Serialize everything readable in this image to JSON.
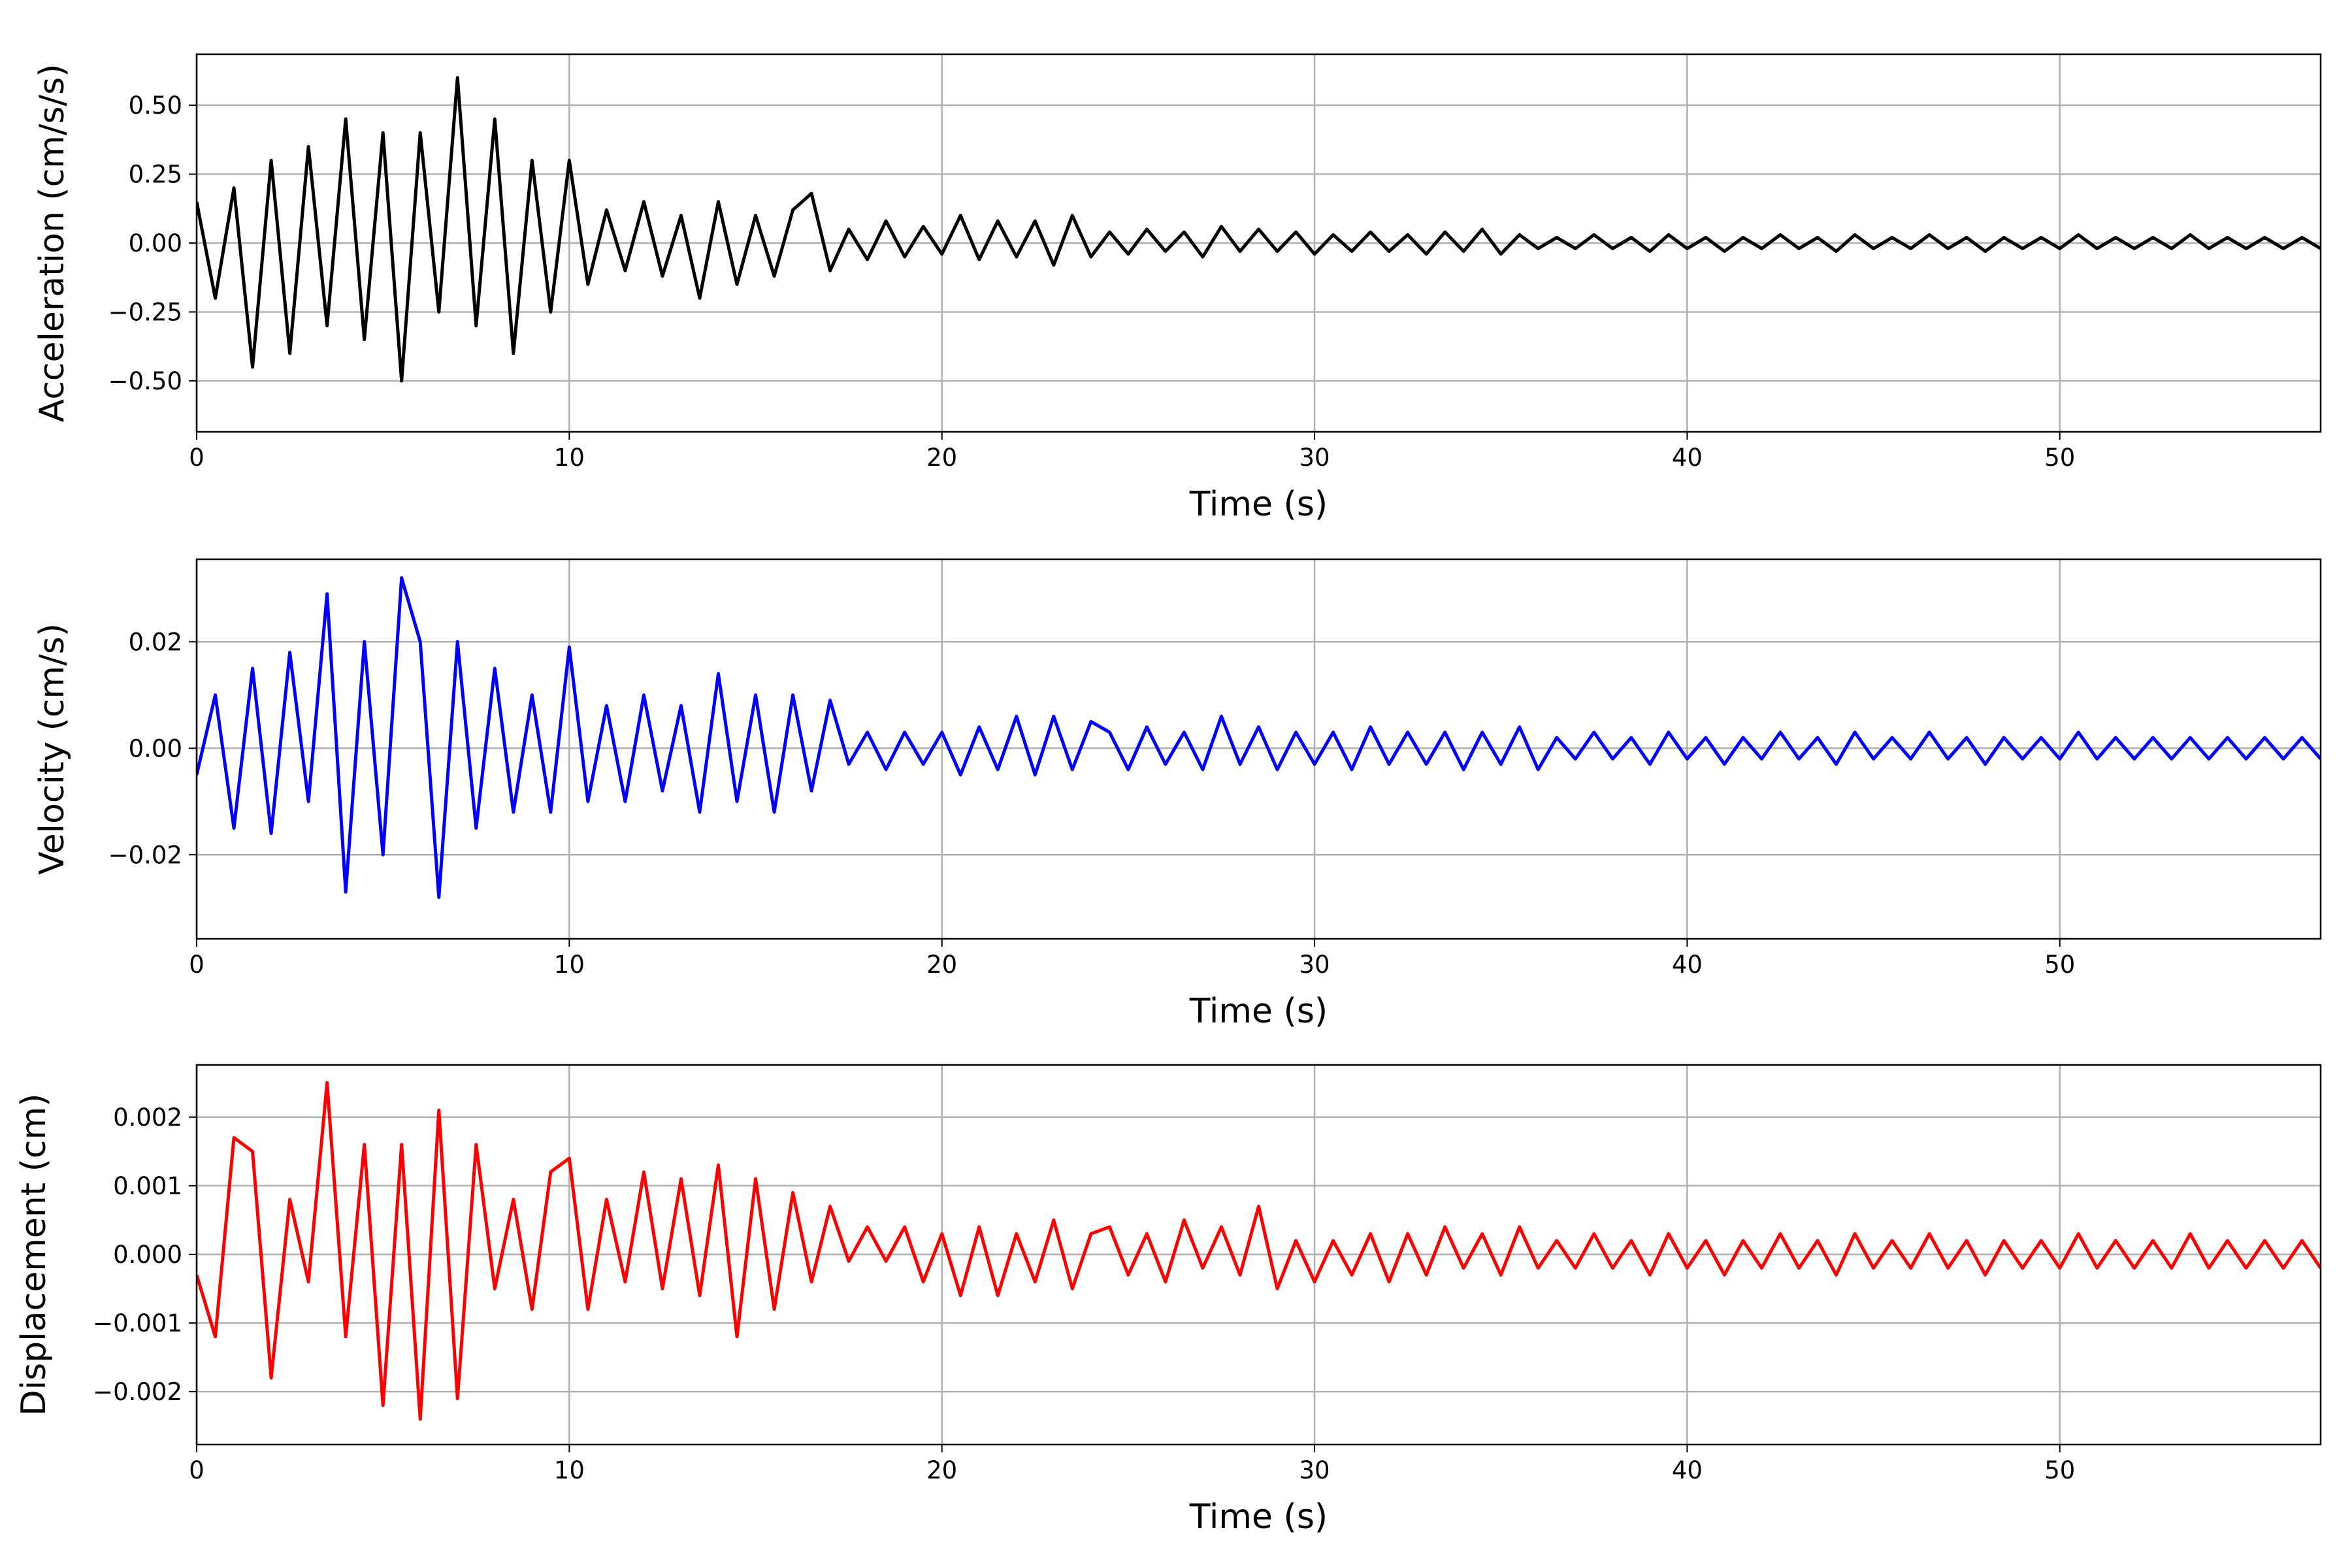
{
  "chart_data": [
    {
      "type": "line",
      "color": "#000000",
      "xlabel": "Time (s)",
      "ylabel": "Acceleration (cm/s/s)",
      "grid": true,
      "xlim": [
        0,
        57
      ],
      "xticks": [
        0,
        10,
        20,
        30,
        40,
        50
      ],
      "ylim": [
        -0.685,
        0.685
      ],
      "yticks": [
        {
          "value": -0.5,
          "label": "−0.50"
        },
        {
          "value": -0.25,
          "label": "−0.25"
        },
        {
          "value": 0,
          "label": "0.00"
        },
        {
          "value": 0.25,
          "label": "0.25"
        },
        {
          "value": 0.5,
          "label": "0.50"
        }
      ],
      "x": [
        0,
        0.5,
        1,
        1.5,
        2,
        2.5,
        3,
        3.5,
        4,
        4.5,
        5,
        5.5,
        6,
        6.5,
        7,
        7.5,
        8,
        8.5,
        9,
        9.5,
        10,
        10.5,
        11,
        11.5,
        12,
        12.5,
        13,
        13.5,
        14,
        14.5,
        15,
        15.5,
        16,
        16.5,
        17,
        17.5,
        18,
        18.5,
        19,
        19.5,
        20,
        20.5,
        21,
        21.5,
        22,
        22.5,
        23,
        23.5,
        24,
        24.5,
        25,
        25.5,
        26,
        26.5,
        27,
        27.5,
        28,
        28.5,
        29,
        29.5,
        30,
        30.5,
        31,
        31.5,
        32,
        32.5,
        33,
        33.5,
        34,
        34.5,
        35,
        35.5,
        36,
        36.5,
        37,
        37.5,
        38,
        38.5,
        39,
        39.5,
        40,
        40.5,
        41,
        41.5,
        42,
        42.5,
        43,
        43.5,
        44,
        44.5,
        45,
        45.5,
        46,
        46.5,
        47,
        47.5,
        48,
        48.5,
        49,
        49.5,
        50,
        50.5,
        51,
        51.5,
        52,
        52.5,
        53,
        53.5,
        54,
        54.5,
        55,
        55.5,
        56,
        56.5,
        57
      ],
      "values": [
        0.15,
        -0.2,
        0.2,
        -0.45,
        0.3,
        -0.4,
        0.35,
        -0.3,
        0.45,
        -0.35,
        0.4,
        -0.5,
        0.4,
        -0.25,
        0.6,
        -0.3,
        0.45,
        -0.4,
        0.3,
        -0.25,
        0.3,
        -0.15,
        0.12,
        -0.1,
        0.15,
        -0.12,
        0.1,
        -0.2,
        0.15,
        -0.15,
        0.1,
        -0.12,
        0.12,
        0.18,
        -0.1,
        0.05,
        -0.06,
        0.08,
        -0.05,
        0.06,
        -0.04,
        0.1,
        -0.06,
        0.08,
        -0.05,
        0.08,
        -0.08,
        0.1,
        -0.05,
        0.04,
        -0.04,
        0.05,
        -0.03,
        0.04,
        -0.05,
        0.06,
        -0.03,
        0.05,
        -0.03,
        0.04,
        -0.04,
        0.03,
        -0.03,
        0.04,
        -0.03,
        0.03,
        -0.04,
        0.04,
        -0.03,
        0.05,
        -0.04,
        0.03,
        -0.02,
        0.02,
        -0.02,
        0.03,
        -0.02,
        0.02,
        -0.03,
        0.03,
        -0.02,
        0.02,
        -0.03,
        0.02,
        -0.02,
        0.03,
        -0.02,
        0.02,
        -0.03,
        0.03,
        -0.02,
        0.02,
        -0.02,
        0.03,
        -0.02,
        0.02,
        -0.03,
        0.02,
        -0.02,
        0.02,
        -0.02,
        0.03,
        -0.02,
        0.02,
        -0.02,
        0.02,
        -0.02,
        0.03,
        -0.02,
        0.02,
        -0.02,
        0.02,
        -0.02,
        0.02,
        -0.02
      ]
    },
    {
      "type": "line",
      "color": "#0000ff",
      "xlabel": "Time (s)",
      "ylabel": "Velocity (cm/s)",
      "grid": true,
      "xlim": [
        0,
        57
      ],
      "xticks": [
        0,
        10,
        20,
        30,
        40,
        50
      ],
      "ylim": [
        -0.0358,
        0.0355
      ],
      "yticks": [
        {
          "value": -0.02,
          "label": "−0.02"
        },
        {
          "value": 0,
          "label": "0.00"
        },
        0.02
      ],
      "x": [
        0,
        0.5,
        1,
        1.5,
        2,
        2.5,
        3,
        3.5,
        4,
        4.5,
        5,
        5.5,
        6,
        6.5,
        7,
        7.5,
        8,
        8.5,
        9,
        9.5,
        10,
        10.5,
        11,
        11.5,
        12,
        12.5,
        13,
        13.5,
        14,
        14.5,
        15,
        15.5,
        16,
        16.5,
        17,
        17.5,
        18,
        18.5,
        19,
        19.5,
        20,
        20.5,
        21,
        21.5,
        22,
        22.5,
        23,
        23.5,
        24,
        24.5,
        25,
        25.5,
        26,
        26.5,
        27,
        27.5,
        28,
        28.5,
        29,
        29.5,
        30,
        30.5,
        31,
        31.5,
        32,
        32.5,
        33,
        33.5,
        34,
        34.5,
        35,
        35.5,
        36,
        36.5,
        37,
        37.5,
        38,
        38.5,
        39,
        39.5,
        40,
        40.5,
        41,
        41.5,
        42,
        42.5,
        43,
        43.5,
        44,
        44.5,
        45,
        45.5,
        46,
        46.5,
        47,
        47.5,
        48,
        48.5,
        49,
        49.5,
        50,
        50.5,
        51,
        51.5,
        52,
        52.5,
        53,
        53.5,
        54,
        54.5,
        55,
        55.5,
        56,
        56.5,
        57
      ],
      "values": [
        -0.005,
        0.01,
        -0.015,
        0.015,
        -0.016,
        0.018,
        -0.01,
        0.029,
        -0.027,
        0.02,
        -0.02,
        0.032,
        0.02,
        -0.028,
        0.02,
        -0.015,
        0.015,
        -0.012,
        0.01,
        -0.012,
        0.019,
        -0.01,
        0.008,
        -0.01,
        0.01,
        -0.008,
        0.008,
        -0.012,
        0.014,
        -0.01,
        0.01,
        -0.012,
        0.01,
        -0.008,
        0.009,
        -0.003,
        0.003,
        -0.004,
        0.003,
        -0.003,
        0.003,
        -0.005,
        0.004,
        -0.004,
        0.006,
        -0.005,
        0.006,
        -0.004,
        0.005,
        0.003,
        -0.004,
        0.004,
        -0.003,
        0.003,
        -0.004,
        0.006,
        -0.003,
        0.004,
        -0.004,
        0.003,
        -0.003,
        0.003,
        -0.004,
        0.004,
        -0.003,
        0.003,
        -0.003,
        0.003,
        -0.004,
        0.003,
        -0.003,
        0.004,
        -0.004,
        0.002,
        -0.002,
        0.003,
        -0.002,
        0.002,
        -0.003,
        0.003,
        -0.002,
        0.002,
        -0.003,
        0.002,
        -0.002,
        0.003,
        -0.002,
        0.002,
        -0.003,
        0.003,
        -0.002,
        0.002,
        -0.002,
        0.003,
        -0.002,
        0.002,
        -0.003,
        0.002,
        -0.002,
        0.002,
        -0.002,
        0.003,
        -0.002,
        0.002,
        -0.002,
        0.002,
        -0.002,
        0.002,
        -0.002,
        0.002,
        -0.002,
        0.002,
        -0.002,
        0.002,
        -0.002
      ]
    },
    {
      "type": "line",
      "color": "#ff0000",
      "xlabel": "Time (s)",
      "ylabel": "Displacement (cm)",
      "grid": true,
      "xlim": [
        0,
        57
      ],
      "xticks": [
        0,
        10,
        20,
        30,
        40,
        50
      ],
      "ylim": [
        -0.00277,
        0.00276
      ],
      "yticks": [
        {
          "value": -0.002,
          "label": "−0.002"
        },
        {
          "value": -0.001,
          "label": "−0.001"
        },
        {
          "value": 0,
          "label": "0.000"
        },
        0.001,
        0.002
      ],
      "x": [
        0,
        0.5,
        1,
        1.5,
        2,
        2.5,
        3,
        3.5,
        4,
        4.5,
        5,
        5.5,
        6,
        6.5,
        7,
        7.5,
        8,
        8.5,
        9,
        9.5,
        10,
        10.5,
        11,
        11.5,
        12,
        12.5,
        13,
        13.5,
        14,
        14.5,
        15,
        15.5,
        16,
        16.5,
        17,
        17.5,
        18,
        18.5,
        19,
        19.5,
        20,
        20.5,
        21,
        21.5,
        22,
        22.5,
        23,
        23.5,
        24,
        24.5,
        25,
        25.5,
        26,
        26.5,
        27,
        27.5,
        28,
        28.5,
        29,
        29.5,
        30,
        30.5,
        31,
        31.5,
        32,
        32.5,
        33,
        33.5,
        34,
        34.5,
        35,
        35.5,
        36,
        36.5,
        37,
        37.5,
        38,
        38.5,
        39,
        39.5,
        40,
        40.5,
        41,
        41.5,
        42,
        42.5,
        43,
        43.5,
        44,
        44.5,
        45,
        45.5,
        46,
        46.5,
        47,
        47.5,
        48,
        48.5,
        49,
        49.5,
        50,
        50.5,
        51,
        51.5,
        52,
        52.5,
        53,
        53.5,
        54,
        54.5,
        55,
        55.5,
        56,
        56.5,
        57
      ],
      "values": [
        -0.0003,
        -0.0012,
        0.0017,
        0.0015,
        -0.0018,
        0.0008,
        -0.0004,
        0.0025,
        -0.0012,
        0.0016,
        -0.0022,
        0.0016,
        -0.0024,
        0.0021,
        -0.0021,
        0.0016,
        -0.0005,
        0.0008,
        -0.0008,
        0.0012,
        0.0014,
        -0.0008,
        0.0008,
        -0.0004,
        0.0012,
        -0.0005,
        0.0011,
        -0.0006,
        0.0013,
        -0.0012,
        0.0011,
        -0.0008,
        0.0009,
        -0.0004,
        0.0007,
        -0.0001,
        0.0004,
        -0.0001,
        0.0004,
        -0.0004,
        0.0003,
        -0.0006,
        0.0004,
        -0.0006,
        0.0003,
        -0.0004,
        0.0005,
        -0.0005,
        0.0003,
        0.0004,
        -0.0003,
        0.0003,
        -0.0004,
        0.0005,
        -0.0002,
        0.0004,
        -0.0003,
        0.0007,
        -0.0005,
        0.0002,
        -0.0004,
        0.0002,
        -0.0003,
        0.0003,
        -0.0004,
        0.0003,
        -0.0003,
        0.0004,
        -0.0002,
        0.0003,
        -0.0003,
        0.0004,
        -0.0002,
        0.0002,
        -0.0002,
        0.0003,
        -0.0002,
        0.0002,
        -0.0003,
        0.0003,
        -0.0002,
        0.0002,
        -0.0003,
        0.0002,
        -0.0002,
        0.0003,
        -0.0002,
        0.0002,
        -0.0003,
        0.0003,
        -0.0002,
        0.0002,
        -0.0002,
        0.0003,
        -0.0002,
        0.0002,
        -0.0003,
        0.0002,
        -0.0002,
        0.0002,
        -0.0002,
        0.0003,
        -0.0002,
        0.0002,
        -0.0002,
        0.0002,
        -0.0002,
        0.0003,
        -0.0002,
        0.0002,
        -0.0002,
        0.0002,
        -0.0002,
        0.0002,
        -0.0002
      ]
    }
  ]
}
